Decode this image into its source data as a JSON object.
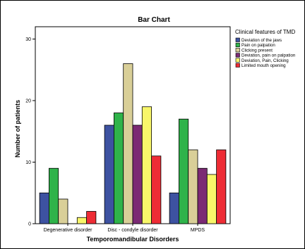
{
  "chart_data": {
    "type": "bar",
    "title": "Bar Chart",
    "xlabel": "Temporomandibular Disorders",
    "ylabel": "Number of patients",
    "ylim": [
      0,
      32
    ],
    "yticks": [
      0,
      10,
      20,
      30
    ],
    "categories": [
      "Degenerative disorder",
      "Disc - condyle disorder",
      "MPDS"
    ],
    "legend_title": "Clinical features of TMD",
    "legend_position": "right",
    "grid": false,
    "series": [
      {
        "name": "Deviation of the jaws",
        "color": "#3d52a1",
        "values": [
          5,
          16,
          5
        ]
      },
      {
        "name": "Pain on palpation",
        "color": "#2fb34a",
        "values": [
          9,
          18,
          17
        ]
      },
      {
        "name": "Clicking present",
        "color": "#d9cf98",
        "values": [
          4,
          26,
          12
        ]
      },
      {
        "name": "Deviation, pain on palpation",
        "color": "#7b2a74",
        "values": [
          0,
          16,
          9
        ]
      },
      {
        "name": "Deviation, Pain, Clicking",
        "color": "#f8f66a",
        "values": [
          1,
          19,
          8
        ]
      },
      {
        "name": "Limited mouth opening",
        "color": "#ee2c35",
        "values": [
          2,
          11,
          12
        ]
      }
    ]
  }
}
